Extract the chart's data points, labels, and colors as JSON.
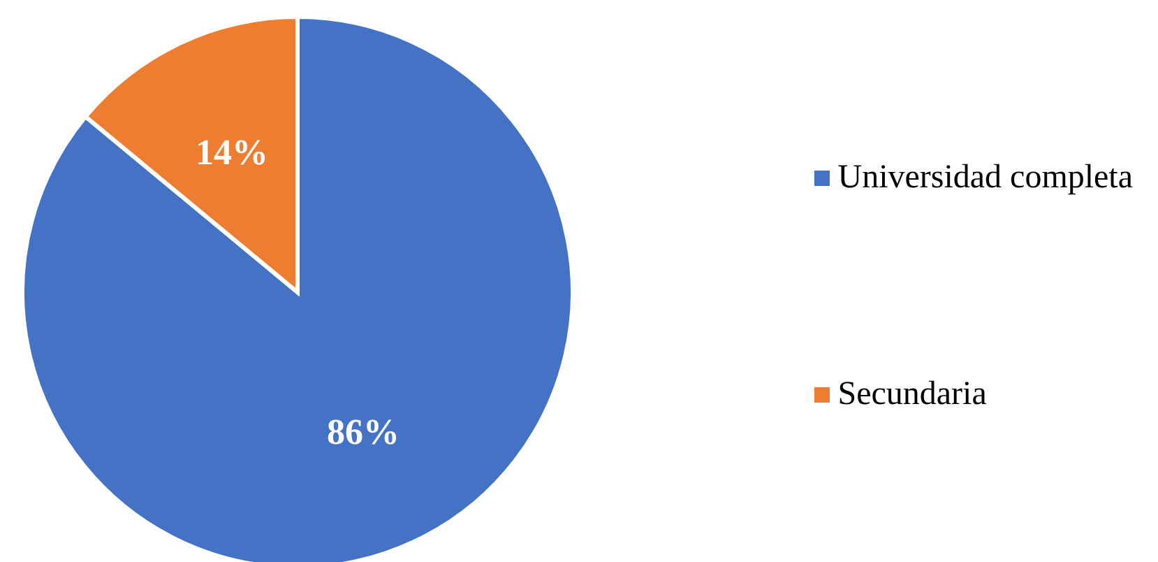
{
  "chart_data": {
    "type": "pie",
    "categories": [
      "Universidad completa",
      "Secundaria"
    ],
    "values": [
      86,
      14
    ],
    "colors": [
      "#4472c4",
      "#ed7d31"
    ],
    "value_labels": [
      "86%",
      "14%"
    ],
    "legend": "right"
  }
}
